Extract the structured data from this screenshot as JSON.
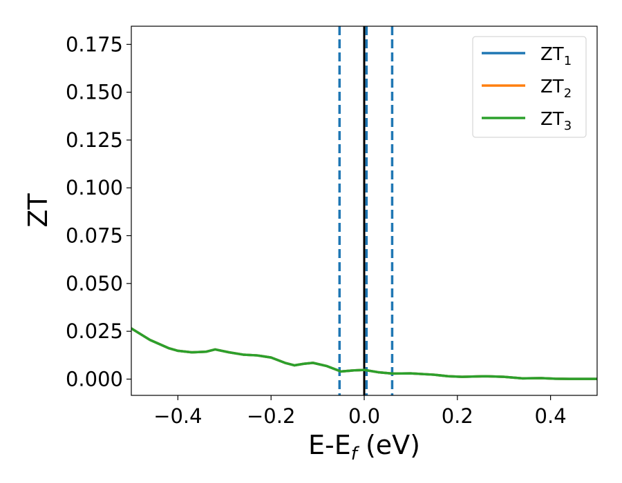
{
  "chart_data": {
    "type": "line",
    "xlabel_main": "E-E",
    "xlabel_sub": "f",
    "xlabel_unit": " (eV)",
    "ylabel": "ZT",
    "xlim": [
      -0.5,
      0.5
    ],
    "ylim": [
      -0.0085,
      0.1845
    ],
    "grid": false,
    "legend_position": "top-right",
    "x_ticks": [
      {
        "value": -0.4,
        "label": "−0.4"
      },
      {
        "value": -0.2,
        "label": "−0.2"
      },
      {
        "value": 0.0,
        "label": "0.0"
      },
      {
        "value": 0.2,
        "label": "0.2"
      },
      {
        "value": 0.4,
        "label": "0.4"
      }
    ],
    "y_ticks": [
      {
        "value": 0.0,
        "label": "0.000"
      },
      {
        "value": 0.025,
        "label": "0.025"
      },
      {
        "value": 0.05,
        "label": "0.050"
      },
      {
        "value": 0.075,
        "label": "0.075"
      },
      {
        "value": 0.1,
        "label": "0.100"
      },
      {
        "value": 0.125,
        "label": "0.125"
      },
      {
        "value": 0.15,
        "label": "0.150"
      },
      {
        "value": 0.175,
        "label": "0.175"
      }
    ],
    "reference_lines": [
      {
        "x": -0.053,
        "style": "dashed",
        "color": "#1f77b4"
      },
      {
        "x": 0.005,
        "style": "dashed",
        "color": "#1f77b4"
      },
      {
        "x": 0.06,
        "style": "dashed",
        "color": "#1f77b4"
      },
      {
        "x": 0.0,
        "style": "solid",
        "color": "#000000"
      }
    ],
    "series": [
      {
        "name_main": "ZT",
        "name_sub": "1",
        "color": "#1f77b4",
        "x": [
          -0.5,
          -0.46,
          -0.42,
          -0.4,
          -0.37,
          -0.34,
          -0.32,
          -0.29,
          -0.26,
          -0.23,
          -0.2,
          -0.17,
          -0.15,
          -0.13,
          -0.11,
          -0.08,
          -0.05,
          -0.02,
          0.0,
          0.03,
          0.06,
          0.1,
          0.15,
          0.18,
          0.21,
          0.26,
          0.3,
          0.34,
          0.38,
          0.41,
          0.44,
          0.5
        ],
        "y": [
          0.0265,
          0.0205,
          0.0162,
          0.0148,
          0.014,
          0.0143,
          0.0155,
          0.014,
          0.0128,
          0.0124,
          0.0113,
          0.0085,
          0.0072,
          0.008,
          0.0085,
          0.0068,
          0.004,
          0.0046,
          0.0048,
          0.0036,
          0.0029,
          0.003,
          0.0023,
          0.0015,
          0.0012,
          0.0015,
          0.0012,
          0.0004,
          0.0005,
          0.0002,
          0.0001,
          0.0001
        ]
      },
      {
        "name_main": "ZT",
        "name_sub": "2",
        "color": "#ff7f0e",
        "x": [
          -0.5,
          -0.46,
          -0.42,
          -0.4,
          -0.37,
          -0.34,
          -0.32,
          -0.29,
          -0.26,
          -0.23,
          -0.2,
          -0.17,
          -0.15,
          -0.13,
          -0.11,
          -0.08,
          -0.05,
          -0.02,
          0.0,
          0.03,
          0.06,
          0.1,
          0.15,
          0.18,
          0.21,
          0.26,
          0.3,
          0.34,
          0.38,
          0.41,
          0.44,
          0.5
        ],
        "y": [
          0.0265,
          0.0205,
          0.0162,
          0.0148,
          0.014,
          0.0143,
          0.0155,
          0.014,
          0.0128,
          0.0124,
          0.0113,
          0.0085,
          0.0072,
          0.008,
          0.0085,
          0.0068,
          0.004,
          0.0046,
          0.0048,
          0.0036,
          0.0029,
          0.003,
          0.0023,
          0.0015,
          0.0012,
          0.0015,
          0.0012,
          0.0004,
          0.0005,
          0.0002,
          0.0001,
          0.0001
        ]
      },
      {
        "name_main": "ZT",
        "name_sub": "3",
        "color": "#2ca02c",
        "x": [
          -0.5,
          -0.46,
          -0.42,
          -0.4,
          -0.37,
          -0.34,
          -0.32,
          -0.29,
          -0.26,
          -0.23,
          -0.2,
          -0.17,
          -0.15,
          -0.13,
          -0.11,
          -0.08,
          -0.05,
          -0.02,
          0.0,
          0.03,
          0.06,
          0.1,
          0.15,
          0.18,
          0.21,
          0.26,
          0.3,
          0.34,
          0.38,
          0.41,
          0.44,
          0.5
        ],
        "y": [
          0.0265,
          0.0205,
          0.0162,
          0.0148,
          0.014,
          0.0143,
          0.0155,
          0.014,
          0.0128,
          0.0124,
          0.0113,
          0.0085,
          0.0072,
          0.008,
          0.0085,
          0.0068,
          0.004,
          0.0046,
          0.0048,
          0.0036,
          0.0029,
          0.003,
          0.0023,
          0.0015,
          0.0012,
          0.0015,
          0.0012,
          0.0004,
          0.0005,
          0.0002,
          0.0001,
          0.0001
        ]
      }
    ]
  }
}
